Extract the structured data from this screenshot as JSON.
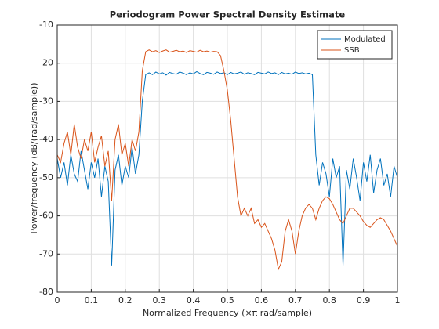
{
  "chart_data": {
    "type": "line",
    "title": "Periodogram Power Spectral Density Estimate",
    "xlabel": "Normalized Frequency  (×π rad/sample)",
    "ylabel": "Power/frequency (dB/(rad/sample))",
    "x": [
      0,
      0.01,
      0.02,
      0.03,
      0.04,
      0.05,
      0.06,
      0.07,
      0.08,
      0.09,
      0.1,
      0.11,
      0.12,
      0.13,
      0.14,
      0.15,
      0.16,
      0.17,
      0.18,
      0.19,
      0.2,
      0.21,
      0.22,
      0.23,
      0.24,
      0.25,
      0.26,
      0.27,
      0.28,
      0.29,
      0.3,
      0.31,
      0.32,
      0.33,
      0.34,
      0.35,
      0.36,
      0.37,
      0.38,
      0.39,
      0.4,
      0.41,
      0.42,
      0.43,
      0.44,
      0.45,
      0.46,
      0.47,
      0.48,
      0.49,
      0.5,
      0.51,
      0.52,
      0.53,
      0.54,
      0.55,
      0.56,
      0.57,
      0.58,
      0.59,
      0.6,
      0.61,
      0.62,
      0.63,
      0.64,
      0.65,
      0.66,
      0.67,
      0.68,
      0.69,
      0.7,
      0.71,
      0.72,
      0.73,
      0.74,
      0.75,
      0.76,
      0.77,
      0.78,
      0.79,
      0.8,
      0.81,
      0.82,
      0.83,
      0.84,
      0.85,
      0.86,
      0.87,
      0.88,
      0.89,
      0.9,
      0.91,
      0.92,
      0.93,
      0.94,
      0.95,
      0.96,
      0.97,
      0.98,
      0.99,
      1
    ],
    "series": [
      {
        "name": "Modulated",
        "color": "#0072bd",
        "values": [
          -45,
          -50,
          -46,
          -52,
          -44,
          -49,
          -51,
          -43,
          -48,
          -53,
          -46,
          -50,
          -45,
          -55,
          -47,
          -51,
          -73,
          -48,
          -44,
          -52,
          -47,
          -50,
          -42,
          -49,
          -44,
          -30,
          -23,
          -22.5,
          -23,
          -22.3,
          -22.8,
          -22.5,
          -23.1,
          -22.4,
          -22.7,
          -22.9,
          -22.3,
          -22.6,
          -23,
          -22.5,
          -22.8,
          -22.2,
          -22.7,
          -23,
          -22.4,
          -22.6,
          -22.9,
          -22.3,
          -22.7,
          -22.5,
          -23,
          -22.4,
          -22.8,
          -22.6,
          -22.3,
          -22.9,
          -22.5,
          -22.7,
          -23,
          -22.4,
          -22.6,
          -22.8,
          -22.3,
          -22.7,
          -22.5,
          -23,
          -22.4,
          -22.8,
          -22.6,
          -22.9,
          -22.3,
          -22.7,
          -22.5,
          -22.8,
          -22.6,
          -23,
          -44,
          -52,
          -46,
          -49,
          -55,
          -45,
          -50,
          -47,
          -73,
          -48,
          -53,
          -45,
          -50,
          -56,
          -46,
          -51,
          -44,
          -54,
          -48,
          -45,
          -52,
          -49,
          -55,
          -47,
          -50
        ]
      },
      {
        "name": "SSB",
        "color": "#d95319",
        "values": [
          -44,
          -46,
          -41,
          -38,
          -44,
          -36,
          -42,
          -45,
          -40,
          -43,
          -38,
          -46,
          -42,
          -39,
          -47,
          -43,
          -56,
          -40,
          -36,
          -44,
          -41,
          -47,
          -40,
          -43,
          -38,
          -22,
          -17,
          -16.5,
          -17,
          -16.7,
          -17.2,
          -16.8,
          -16.5,
          -17.1,
          -16.9,
          -16.6,
          -17,
          -16.8,
          -17.2,
          -16.7,
          -16.9,
          -17.1,
          -16.6,
          -17,
          -16.8,
          -17.1,
          -16.9,
          -17,
          -18,
          -22,
          -27,
          -35,
          -45,
          -55,
          -60,
          -58,
          -60,
          -58,
          -62,
          -61,
          -63,
          -62,
          -64,
          -66,
          -69,
          -74,
          -72,
          -64,
          -61,
          -64,
          -70,
          -64,
          -60,
          -58,
          -57,
          -58,
          -61,
          -58,
          -56,
          -55,
          -55.5,
          -57,
          -59,
          -61,
          -62,
          -60,
          -58,
          -58,
          -59,
          -60,
          -61.5,
          -62.5,
          -63,
          -62,
          -61,
          -60.5,
          -61,
          -62.5,
          -64,
          -66,
          -68
        ]
      }
    ],
    "xlim": [
      0,
      1
    ],
    "xticks": [
      0,
      0.1,
      0.2,
      0.3,
      0.4,
      0.5,
      0.6,
      0.7,
      0.8,
      0.9,
      1
    ],
    "ylim": [
      -80,
      -10
    ],
    "yticks": [
      -80,
      -70,
      -60,
      -50,
      -40,
      -30,
      -20,
      -10
    ],
    "grid": true,
    "legend": "top-right"
  }
}
